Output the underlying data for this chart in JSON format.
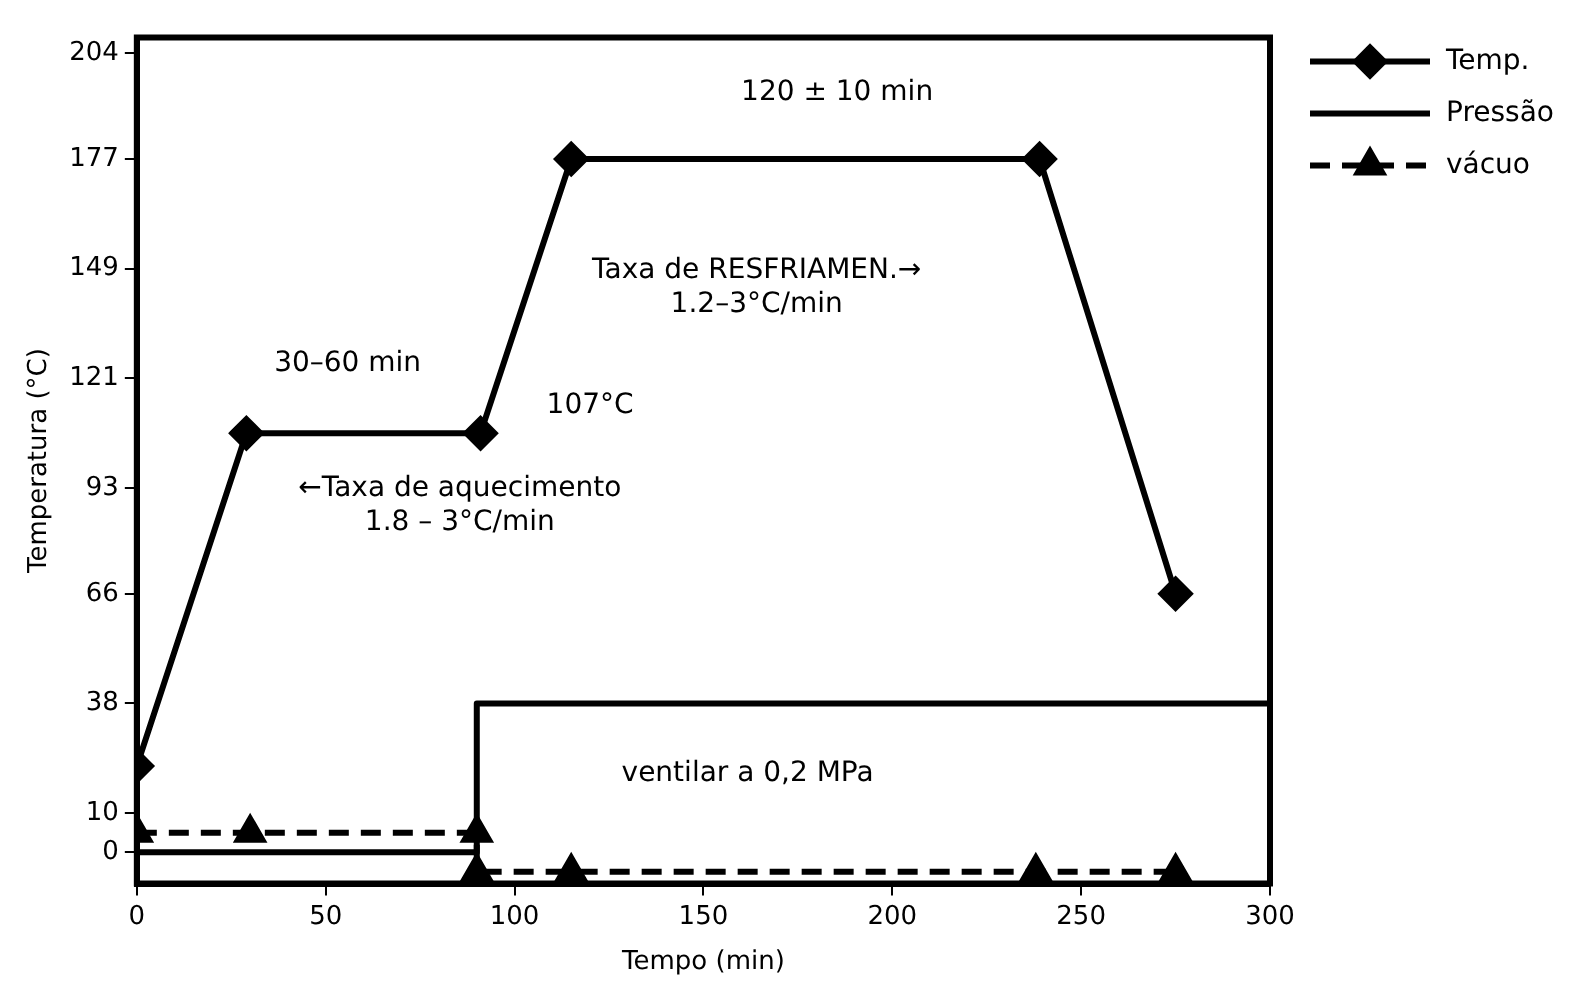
{
  "chart_data": {
    "type": "line",
    "xlabel": "Tempo (min)",
    "ylabel": "Temperatura (°C)",
    "xlim": [
      0,
      300
    ],
    "xticks": [
      0,
      50,
      100,
      150,
      200,
      250,
      300
    ],
    "ylim": [
      -8,
      208
    ],
    "yticks": [
      0,
      10,
      38,
      66,
      93,
      121,
      149,
      177,
      204
    ],
    "grid": false,
    "legend": "top right",
    "series": [
      {
        "name": "Temp.",
        "color": "#000000",
        "marker": "diamond",
        "line_style": "solid",
        "x": [
          0,
          29,
          91,
          115,
          239,
          275
        ],
        "values": [
          22,
          107,
          107,
          177,
          177,
          66
        ]
      },
      {
        "name": "Pressão",
        "color": "#000000",
        "marker": "none",
        "line_style": "solid",
        "x": [
          0,
          90,
          90,
          300
        ],
        "values": [
          0,
          0,
          38,
          38
        ]
      },
      {
        "name": "vácuo",
        "color": "#000000",
        "marker": "triangle",
        "line_style": "dashed",
        "x": [
          0,
          30,
          90,
          90,
          115,
          238,
          275
        ],
        "values": [
          5,
          5,
          5,
          -5,
          -5,
          -5,
          -5
        ]
      }
    ],
    "annotations": [
      "30–60 min",
      "107°C",
      "120 ± 10 min",
      "Taxa de RESFRIAMEN.→\n1.2–3°C/min",
      "←Taxa de aquecimento\n1.8 – 3°C/min",
      "ventilar a 0,2 MPa"
    ]
  }
}
